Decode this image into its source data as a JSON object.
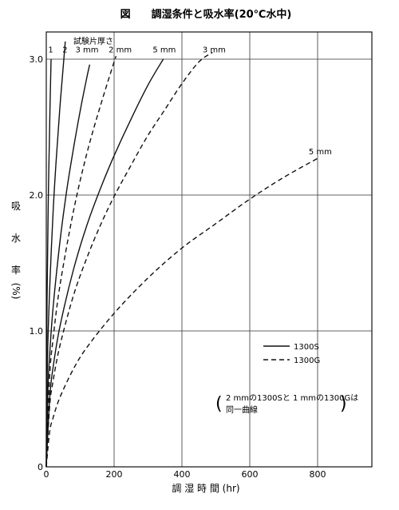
{
  "chart_data": {
    "type": "line",
    "title": "図　　調湿条件と吸水率(20℃水中)",
    "xlabel": "調 湿 時 間 (hr)",
    "ylabel": [
      "吸",
      "水",
      "率",
      "(%)"
    ],
    "xlim": [
      0,
      960
    ],
    "ylim": [
      0,
      3.2
    ],
    "grid": true,
    "xticks": [
      {
        "value": 0,
        "label": "0"
      },
      {
        "value": 200,
        "label": "200"
      },
      {
        "value": 400,
        "label": "400"
      },
      {
        "value": 600,
        "label": "600"
      },
      {
        "value": 800,
        "label": "800"
      }
    ],
    "yticks": [
      {
        "value": 1.0,
        "label": "1.0"
      },
      {
        "value": 2.0,
        "label": "2.0"
      },
      {
        "value": 3.0,
        "label": "3.0"
      }
    ],
    "thickness_header": "試験片厚さ",
    "legend": {
      "position": "right",
      "entries": [
        {
          "style": "solid",
          "label": "1300S"
        },
        {
          "style": "dashed",
          "label": "1300G"
        }
      ]
    },
    "note": {
      "open": "(",
      "line1": "2 mmの1300Sと 1 mmの1300Gは",
      "line2": "同一曲線",
      "close": ")"
    },
    "series": [
      {
        "label": "1",
        "style": "solid",
        "label_at": [
          13,
          3.05
        ],
        "x": [
          0,
          1,
          3,
          6,
          10,
          14
        ],
        "y": [
          0,
          0.8,
          1.39,
          1.96,
          2.53,
          3.0
        ]
      },
      {
        "label": "2",
        "style": "solid",
        "label_at": [
          55,
          3.05
        ],
        "x": [
          0,
          2,
          5,
          10,
          20,
          30,
          40,
          50,
          56
        ],
        "y": [
          0,
          0.59,
          0.94,
          1.32,
          1.87,
          2.29,
          2.64,
          2.95,
          3.13
        ]
      },
      {
        "label": "3 mm",
        "style": "solid",
        "label_at": [
          120,
          3.05
        ],
        "x": [
          0,
          5,
          10,
          20,
          40,
          60,
          80,
          100,
          120,
          128
        ],
        "y": [
          0,
          0.58,
          0.83,
          1.17,
          1.65,
          2.03,
          2.34,
          2.62,
          2.87,
          2.96
        ]
      },
      {
        "label": "2 mm",
        "style": "dashed",
        "label_at": [
          218,
          3.05
        ],
        "x": [
          0,
          10,
          20,
          40,
          80,
          120,
          160,
          200,
          206
        ],
        "y": [
          0,
          0.67,
          0.94,
          1.33,
          1.88,
          2.31,
          2.66,
          2.98,
          3.02
        ]
      },
      {
        "label": "5 mm",
        "style": "solid",
        "label_at": [
          348,
          3.05
        ],
        "x": [
          0,
          10,
          20,
          40,
          80,
          120,
          160,
          200,
          250,
          300,
          345
        ],
        "y": [
          0,
          0.51,
          0.73,
          1.03,
          1.45,
          1.78,
          2.05,
          2.29,
          2.56,
          2.81,
          3.0
        ]
      },
      {
        "label": "3 mm",
        "style": "dashed",
        "label_at": [
          495,
          3.05
        ],
        "x": [
          0,
          10,
          20,
          40,
          80,
          120,
          160,
          200,
          250,
          300,
          350,
          400,
          450,
          490
        ],
        "y": [
          0,
          0.45,
          0.63,
          0.89,
          1.26,
          1.54,
          1.78,
          1.99,
          2.22,
          2.44,
          2.63,
          2.82,
          2.98,
          3.05
        ]
      },
      {
        "label": "5 mm",
        "style": "dashed",
        "label_at": [
          808,
          2.3
        ],
        "x": [
          0,
          10,
          20,
          40,
          80,
          120,
          200,
          300,
          400,
          500,
          600,
          700,
          800
        ],
        "y": [
          0,
          0.26,
          0.36,
          0.51,
          0.72,
          0.88,
          1.13,
          1.39,
          1.61,
          1.79,
          1.97,
          2.13,
          2.27
        ]
      }
    ]
  }
}
